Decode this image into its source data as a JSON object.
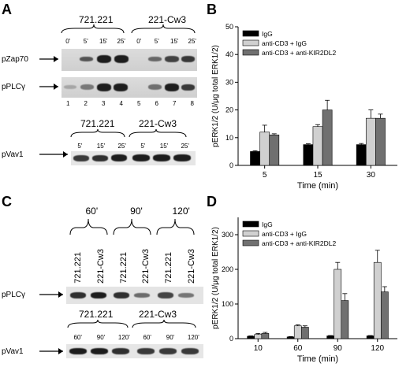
{
  "panels": {
    "a": {
      "letter": "A",
      "cell_lines": [
        "721.221",
        "221-Cw3"
      ],
      "times": [
        "0'",
        "5'",
        "15'",
        "25'",
        "0'",
        "5'",
        "15'",
        "25'"
      ],
      "rows": [
        "pZap70",
        "pPLCγ"
      ],
      "lane_numbers": [
        "1",
        "2",
        "3",
        "4",
        "5",
        "6",
        "7",
        "8"
      ],
      "vav": {
        "cell_lines": [
          "721.221",
          "221-Cw3"
        ],
        "times": [
          "5'",
          "15'",
          "25'",
          "5'",
          "15'",
          "25'"
        ],
        "row": "pVav1"
      }
    },
    "c": {
      "letter": "C",
      "times": [
        "60'",
        "90'",
        "120'"
      ],
      "lanes": [
        "721.221",
        "221-Cw3",
        "721.221",
        "221-Cw3",
        "721.221",
        "221-Cw3"
      ],
      "row": "pPLCγ",
      "vav": {
        "cell_lines": [
          "721.221",
          "221-Cw3"
        ],
        "times": [
          "60'",
          "90'",
          "120'",
          "60'",
          "90'",
          "120'"
        ],
        "row": "pVav1"
      }
    },
    "b_letter": "B",
    "d_letter": "D"
  },
  "chart_data": [
    {
      "type": "bar",
      "panel": "B",
      "categories": [
        "5",
        "15",
        "30"
      ],
      "xlabel": "Time (min)",
      "ylabel": "pERK1/2 (U/μg total ERK1/2)",
      "ylim": [
        0,
        50
      ],
      "yticks": [
        "0",
        "10",
        "20",
        "30",
        "40",
        "50"
      ],
      "series": [
        {
          "name": "IgG",
          "color": "#000000",
          "values": [
            5,
            7.5,
            7.5
          ],
          "errors": [
            0.3,
            0.3,
            0.4
          ]
        },
        {
          "name": "anti-CD3 + IgG",
          "color": "#d0d0d0",
          "values": [
            12,
            14,
            17
          ],
          "errors": [
            2.5,
            0.7,
            3.0
          ]
        },
        {
          "name": "anti-CD3 + anti-KIR2DL2",
          "color": "#707070",
          "values": [
            11,
            20,
            17
          ],
          "errors": [
            0.4,
            3.5,
            1.5
          ]
        }
      ],
      "legend": "top-left",
      "grid": false
    },
    {
      "type": "bar",
      "panel": "D",
      "categories": [
        "10",
        "60",
        "90",
        "120"
      ],
      "xlabel": "Time (min)",
      "ylabel": "pERK1/2 (U/μg total ERK1/2)",
      "ylim": [
        0,
        350
      ],
      "yticks": [
        "0",
        "100",
        "200",
        "300"
      ],
      "series": [
        {
          "name": "IgG",
          "color": "#000000",
          "values": [
            7,
            5,
            8,
            8
          ],
          "errors": [
            1,
            1,
            1,
            1
          ]
        },
        {
          "name": "anti-CD3 + IgG",
          "color": "#d0d0d0",
          "values": [
            12,
            37,
            200,
            220
          ],
          "errors": [
            3,
            3,
            20,
            35
          ]
        },
        {
          "name": "anti-CD3 + anti-KIR2DL2",
          "color": "#707070",
          "values": [
            15,
            33,
            110,
            135
          ],
          "errors": [
            3,
            4,
            20,
            15
          ]
        }
      ],
      "legend": "top-left",
      "grid": false
    }
  ]
}
